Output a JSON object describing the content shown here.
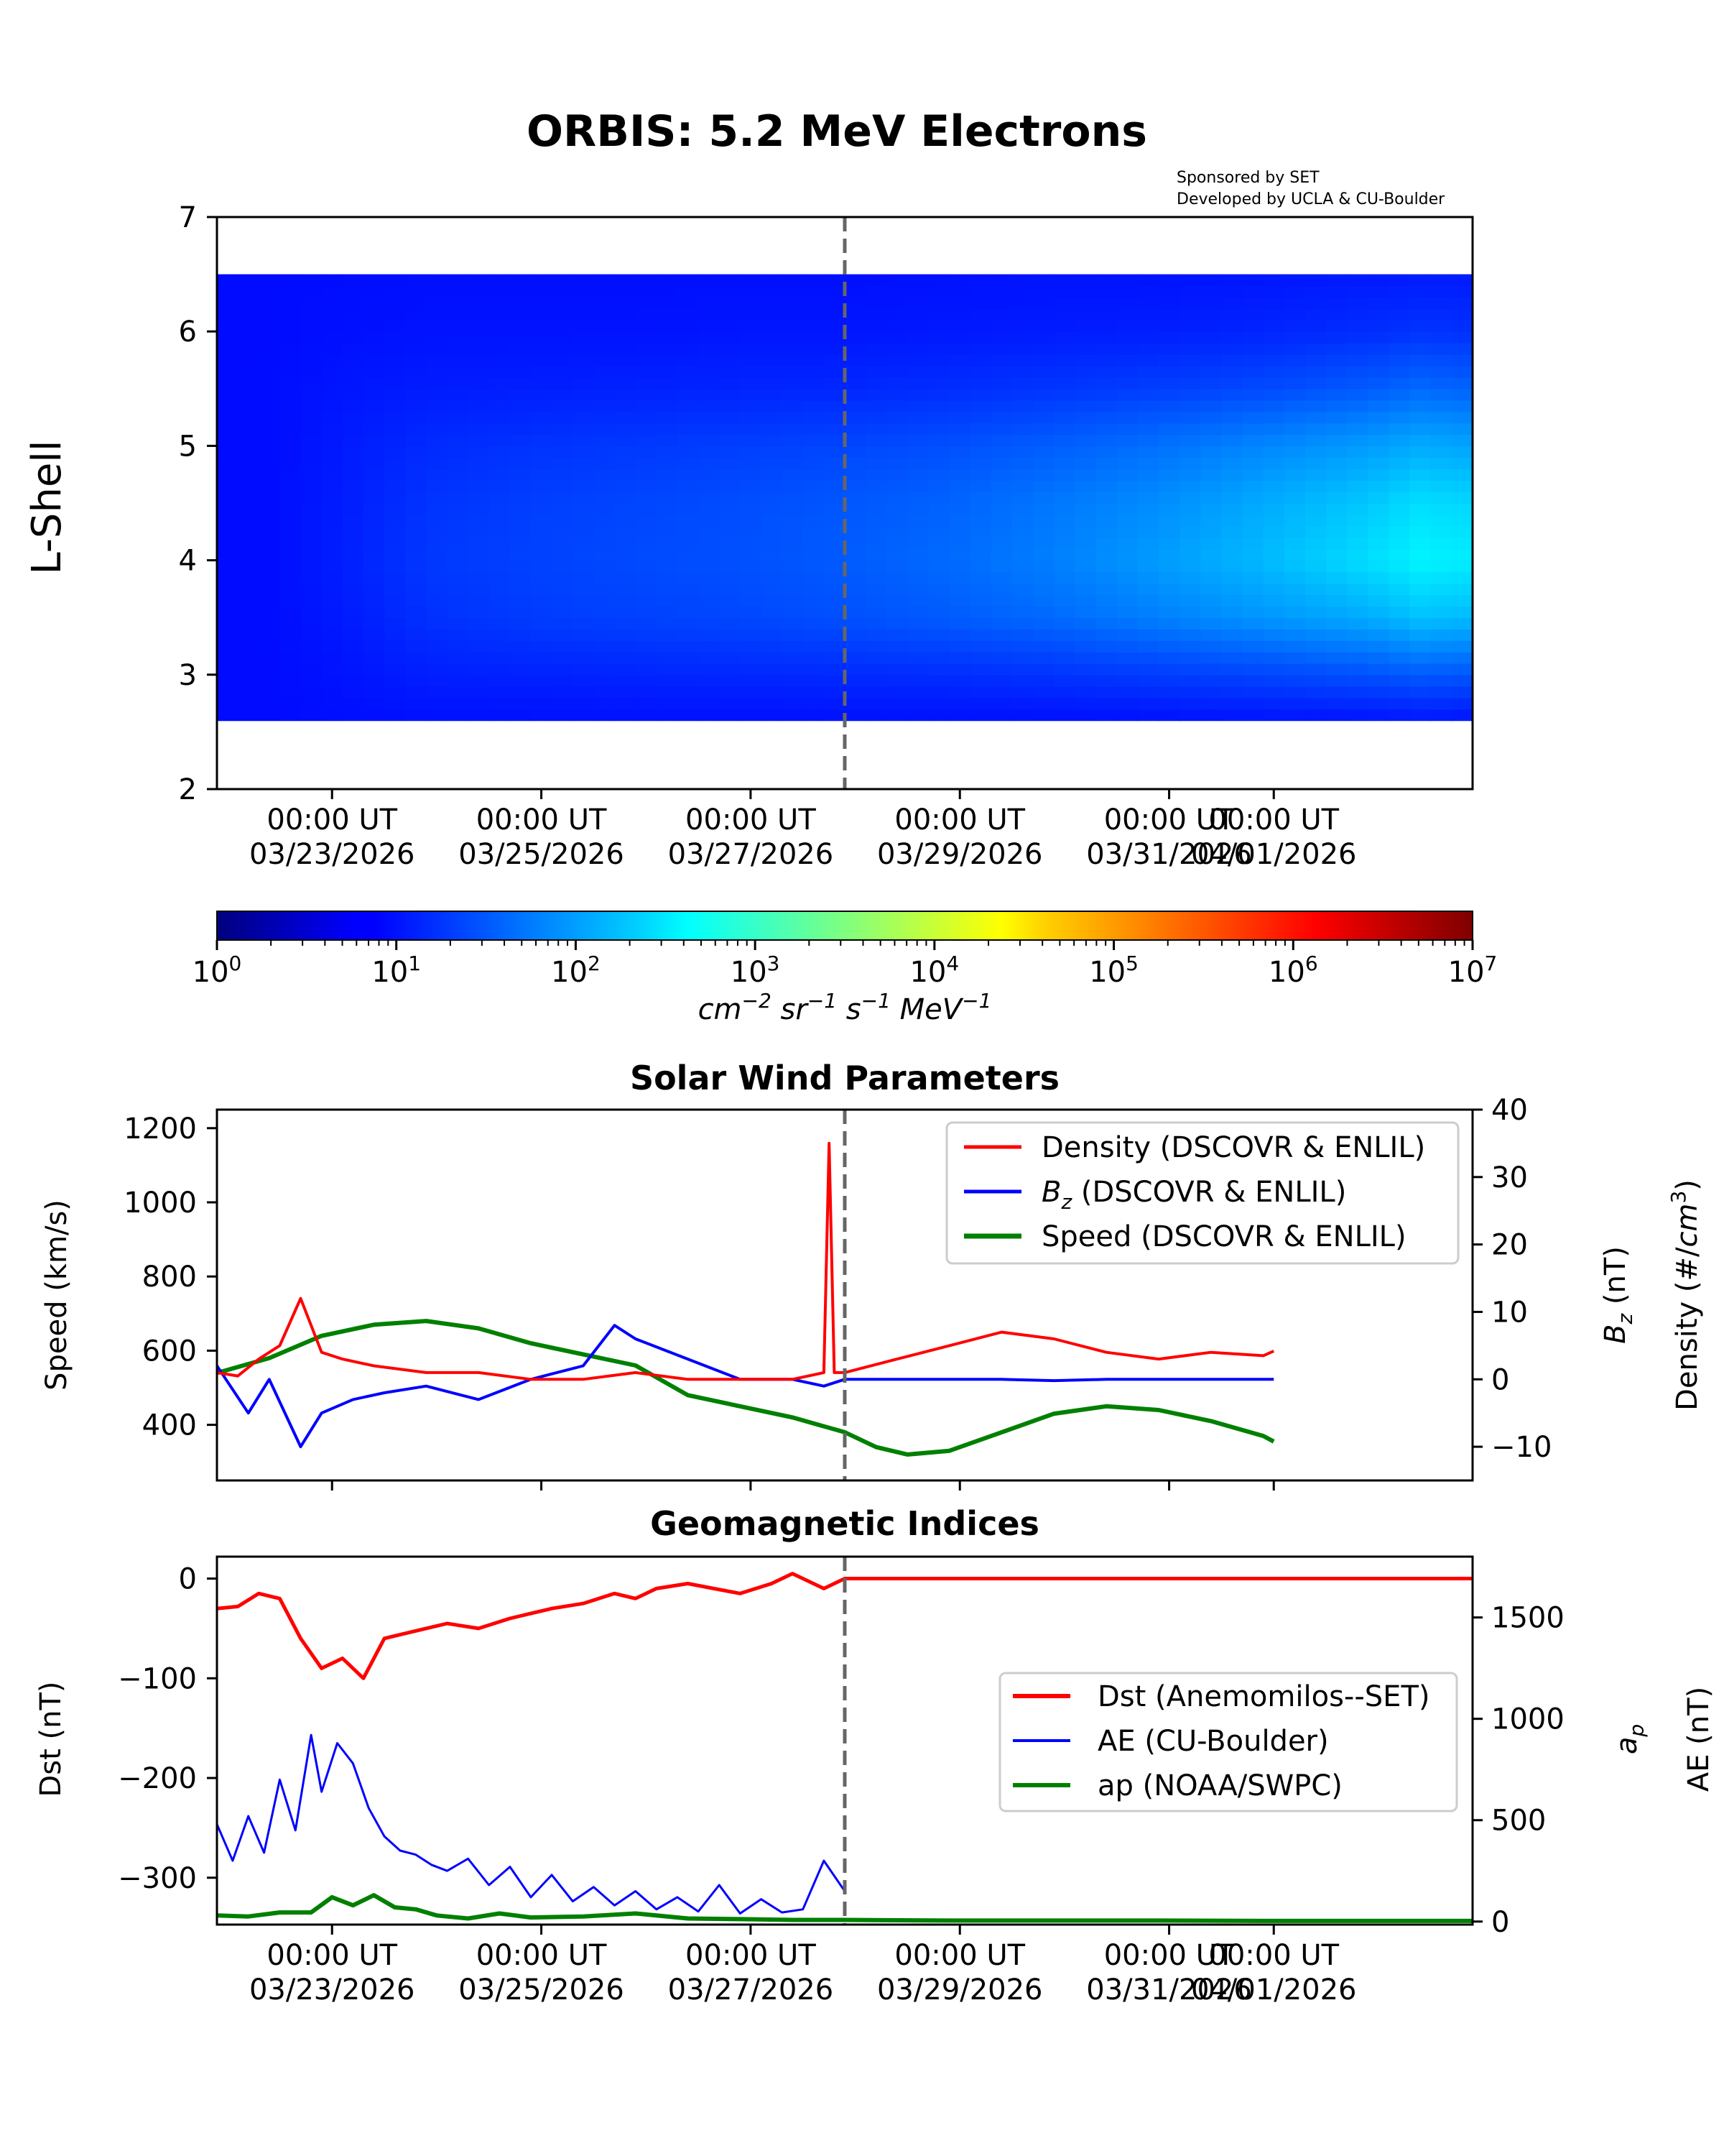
{
  "figure": {
    "title": "ORBIS: 5.2 MeV Electrons",
    "credits": [
      "Sponsored by SET",
      "Developed by UCLA & CU-Boulder"
    ]
  },
  "chart_data": [
    {
      "type": "heatmap",
      "panel": "flux",
      "title": "ORBIS: 5.2 MeV Electrons",
      "xlabel": "",
      "ylabel": "L-Shell",
      "x_days_range": [
        0,
        12
      ],
      "ylim": [
        2,
        7
      ],
      "y_ticks": [
        2,
        3,
        4,
        5,
        6,
        7
      ],
      "data_l_range": [
        2.6,
        6.5
      ],
      "x_ticks": [
        {
          "day": 1.1,
          "label": [
            "00:00 UT",
            "03/23/2026"
          ]
        },
        {
          "day": 3.1,
          "label": [
            "00:00 UT",
            "03/25/2026"
          ]
        },
        {
          "day": 5.1,
          "label": [
            "00:00 UT",
            "03/27/2026"
          ]
        },
        {
          "day": 7.1,
          "label": [
            "00:00 UT",
            "03/29/2026"
          ]
        },
        {
          "day": 9.1,
          "label": [
            "00:00 UT",
            "03/31/2026"
          ]
        },
        {
          "day": 10.1,
          "label": [
            "00:00 UT",
            "04/01/2026"
          ]
        }
      ],
      "now_line_day": 6.0,
      "flux_grid": {
        "days": [
          0,
          0.5,
          1.2,
          2,
          3,
          4,
          5,
          6,
          7,
          8,
          9,
          10,
          11,
          11.5,
          12
        ],
        "l_shells": [
          2.6,
          3.0,
          3.5,
          4.0,
          4.5,
          5.0,
          5.5,
          6.0,
          6.5
        ],
        "log10_flux": [
          [
            0.95,
            0.95,
            0.97,
            0.98,
            0.98,
            0.98,
            0.98,
            0.98,
            0.98,
            0.98,
            0.99,
            1.0,
            1.0,
            1.02,
            1.0
          ],
          [
            0.95,
            0.95,
            1.0,
            1.08,
            1.1,
            1.12,
            1.14,
            1.16,
            1.18,
            1.22,
            1.28,
            1.34,
            1.42,
            1.48,
            1.45
          ],
          [
            0.95,
            0.96,
            1.05,
            1.2,
            1.28,
            1.32,
            1.36,
            1.42,
            1.5,
            1.6,
            1.75,
            1.9,
            2.05,
            2.2,
            2.15
          ],
          [
            0.95,
            0.96,
            1.08,
            1.25,
            1.32,
            1.38,
            1.42,
            1.5,
            1.6,
            1.75,
            1.95,
            2.15,
            2.4,
            2.55,
            2.5
          ],
          [
            0.95,
            0.96,
            1.07,
            1.22,
            1.3,
            1.35,
            1.4,
            1.47,
            1.55,
            1.7,
            1.85,
            2.05,
            2.25,
            2.4,
            2.35
          ],
          [
            0.95,
            0.96,
            1.05,
            1.16,
            1.22,
            1.26,
            1.3,
            1.35,
            1.42,
            1.52,
            1.65,
            1.8,
            1.95,
            2.05,
            2.0
          ],
          [
            0.95,
            0.96,
            1.02,
            1.06,
            1.08,
            1.1,
            1.12,
            1.14,
            1.18,
            1.24,
            1.3,
            1.38,
            1.5,
            1.6,
            1.55
          ],
          [
            0.95,
            0.95,
            0.98,
            1.0,
            1.0,
            1.0,
            1.02,
            1.02,
            1.04,
            1.06,
            1.08,
            1.12,
            1.18,
            1.22,
            1.2
          ],
          [
            0.95,
            0.95,
            0.96,
            0.98,
            0.98,
            0.98,
            0.98,
            0.98,
            0.99,
            1.0,
            1.0,
            1.02,
            1.04,
            1.05,
            1.05
          ]
        ]
      },
      "colorbar": {
        "scale": "log",
        "min_exp": 0,
        "max_exp": 7,
        "ticks": [
          "10^0",
          "10^1",
          "10^2",
          "10^3",
          "10^4",
          "10^5",
          "10^6",
          "10^7"
        ],
        "label": "cm^-2 sr^-1 s^-1 MeV^-1"
      }
    },
    {
      "type": "line",
      "panel": "solar_wind",
      "title": "Solar Wind Parameters",
      "ylabel": "Speed (km/s)",
      "ylabel_right_1": "B_z (nT)",
      "ylabel_right_2": "Density (#/cm^3)",
      "ylim": [
        250,
        1250
      ],
      "y_ticks": [
        400,
        600,
        800,
        1000,
        1200
      ],
      "ylim_right": [
        -15,
        40
      ],
      "y_ticks_right": [
        -10,
        0,
        10,
        20,
        30,
        40
      ],
      "legend_position": "top-right",
      "series": [
        {
          "name": "Density (DSCOVR & ENLIL)",
          "axis": "right",
          "color": "#ff0000",
          "x": [
            0,
            0.2,
            0.4,
            0.6,
            0.8,
            1.0,
            1.2,
            1.5,
            2.0,
            2.5,
            3.0,
            3.5,
            4.0,
            4.5,
            5.0,
            5.5,
            5.8,
            5.85,
            5.9,
            6.0,
            6.5,
            7.0,
            7.5,
            8.0,
            8.5,
            9.0,
            9.5,
            10.0,
            10.1
          ],
          "y": [
            1,
            0.5,
            3,
            5,
            12,
            4,
            3,
            2,
            1,
            1,
            0,
            0,
            1,
            0,
            0,
            0,
            1,
            35,
            1,
            1,
            3,
            5,
            7,
            6,
            4,
            3,
            4,
            3.5,
            4.2
          ]
        },
        {
          "name": "B_z (DSCOVR & ENLIL)",
          "axis": "right",
          "color": "#0000ff",
          "x": [
            0,
            0.3,
            0.5,
            0.8,
            1.0,
            1.3,
            1.6,
            2.0,
            2.5,
            3.0,
            3.5,
            3.8,
            4.0,
            4.5,
            5.0,
            5.5,
            5.8,
            6.0,
            6.5,
            7.0,
            7.5,
            8.0,
            8.5,
            9.0,
            9.5,
            10.1
          ],
          "y": [
            2,
            -5,
            0,
            -10,
            -5,
            -3,
            -2,
            -1,
            -3,
            0,
            2,
            8,
            6,
            3,
            0,
            0,
            -1,
            0,
            0,
            0,
            0,
            -0.2,
            0,
            0,
            0,
            0
          ]
        },
        {
          "name": "Speed (DSCOVR & ENLIL)",
          "axis": "left",
          "color": "#008000",
          "x": [
            0,
            0.5,
            1.0,
            1.5,
            2.0,
            2.5,
            3.0,
            3.5,
            4.0,
            4.5,
            5.0,
            5.5,
            6.0,
            6.3,
            6.6,
            7.0,
            7.5,
            8.0,
            8.5,
            9.0,
            9.5,
            10.0,
            10.1
          ],
          "y": [
            540,
            580,
            640,
            670,
            680,
            660,
            620,
            590,
            560,
            480,
            450,
            420,
            380,
            340,
            320,
            330,
            380,
            430,
            450,
            440,
            410,
            370,
            355
          ]
        }
      ]
    },
    {
      "type": "line",
      "panel": "geomagnetic",
      "title": "Geomagnetic Indices",
      "ylabel": "Dst (nT)",
      "ylabel_right_1": "a_p",
      "ylabel_right_2": "AE (nT)",
      "ylim": [
        -347,
        22
      ],
      "y_ticks": [
        0,
        -100,
        -200,
        -300
      ],
      "ylim_right": [
        -15,
        1800
      ],
      "y_ticks_right": [
        0,
        500,
        1000,
        1500
      ],
      "legend_position": "center-right",
      "series": [
        {
          "name": "Dst (Anemomilos--SET)",
          "axis": "left",
          "color": "#ff0000",
          "x": [
            0,
            0.2,
            0.4,
            0.6,
            0.8,
            1.0,
            1.2,
            1.4,
            1.6,
            1.8,
            2.0,
            2.2,
            2.5,
            2.8,
            3.0,
            3.2,
            3.5,
            3.8,
            4.0,
            4.2,
            4.5,
            5.0,
            5.3,
            5.5,
            5.8,
            6.0,
            7.0,
            9.0,
            12.0
          ],
          "y": [
            -30,
            -28,
            -15,
            -20,
            -60,
            -90,
            -80,
            -100,
            -60,
            -55,
            -50,
            -45,
            -50,
            -40,
            -35,
            -30,
            -25,
            -15,
            -20,
            -10,
            -5,
            -15,
            -5,
            5,
            -10,
            0,
            0,
            0,
            0
          ]
        },
        {
          "name": "AE (CU-Boulder)",
          "axis": "right",
          "color": "#0000ff",
          "x": [
            0,
            0.15,
            0.3,
            0.45,
            0.6,
            0.75,
            0.9,
            1.0,
            1.15,
            1.3,
            1.45,
            1.6,
            1.75,
            1.9,
            2.05,
            2.2,
            2.4,
            2.6,
            2.8,
            3.0,
            3.2,
            3.4,
            3.6,
            3.8,
            4.0,
            4.2,
            4.4,
            4.6,
            4.8,
            5.0,
            5.2,
            5.4,
            5.6,
            5.8,
            6.0
          ],
          "y": [
            480,
            300,
            520,
            340,
            700,
            450,
            920,
            640,
            880,
            780,
            560,
            420,
            350,
            330,
            280,
            250,
            310,
            180,
            270,
            120,
            230,
            100,
            170,
            80,
            150,
            60,
            120,
            50,
            180,
            40,
            110,
            45,
            60,
            300,
            150
          ]
        },
        {
          "name": "ap (NOAA/SWPC)",
          "axis": "right",
          "color": "#008000",
          "x": [
            0,
            0.3,
            0.6,
            0.9,
            1.1,
            1.3,
            1.5,
            1.7,
            1.9,
            2.1,
            2.4,
            2.7,
            3.0,
            3.5,
            4.0,
            4.5,
            5.0,
            5.5,
            6.0,
            7.0,
            8.0,
            9.0,
            10.0,
            11.0,
            12.0
          ],
          "y": [
            30,
            25,
            45,
            45,
            120,
            80,
            130,
            70,
            60,
            30,
            15,
            40,
            20,
            25,
            40,
            15,
            12,
            8,
            8,
            5,
            5,
            5,
            3,
            3,
            3
          ]
        }
      ]
    }
  ]
}
